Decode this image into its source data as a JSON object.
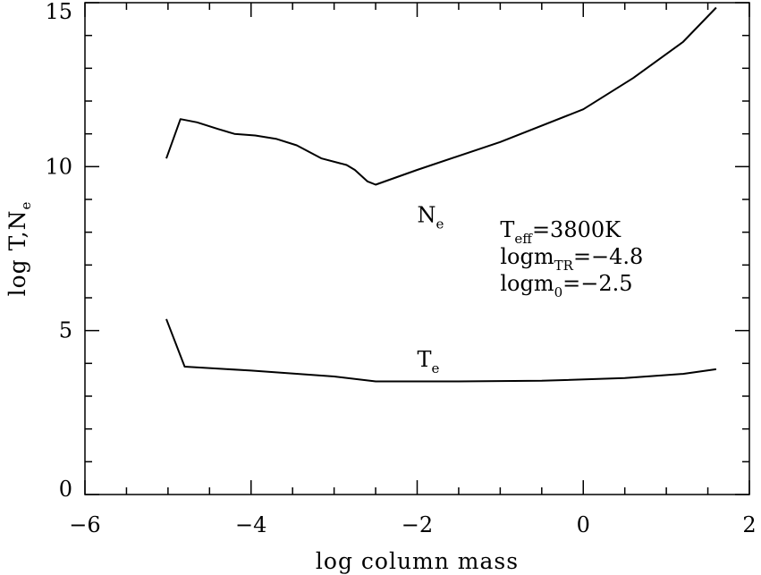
{
  "chart_data": {
    "type": "line",
    "xlabel": "log column mass",
    "ylabel": "log T,N",
    "ylabel_subscript": "e",
    "xlim": [
      -6,
      2
    ],
    "ylim": [
      0,
      15
    ],
    "x_ticks": [
      -6,
      -4,
      -2,
      0,
      2
    ],
    "y_ticks": [
      0,
      5,
      10,
      15
    ],
    "x_minor_step": 0.5,
    "y_minor_step": 1,
    "series": [
      {
        "label_main": "N",
        "label_sub": "e",
        "label_at": [
          -2.0,
          8.3
        ],
        "points": [
          [
            -5.02,
            10.25
          ],
          [
            -4.85,
            11.45
          ],
          [
            -4.65,
            11.35
          ],
          [
            -4.4,
            11.15
          ],
          [
            -4.2,
            11.0
          ],
          [
            -3.95,
            10.95
          ],
          [
            -3.7,
            10.85
          ],
          [
            -3.45,
            10.65
          ],
          [
            -3.15,
            10.25
          ],
          [
            -2.85,
            10.05
          ],
          [
            -2.75,
            9.9
          ],
          [
            -2.6,
            9.55
          ],
          [
            -2.5,
            9.45
          ],
          [
            -2.0,
            9.9
          ],
          [
            -1.0,
            10.75
          ],
          [
            0.0,
            11.75
          ],
          [
            0.6,
            12.7
          ],
          [
            1.2,
            13.8
          ],
          [
            1.6,
            14.85
          ]
        ]
      },
      {
        "label_main": "T",
        "label_sub": "e",
        "label_at": [
          -2.0,
          3.9
        ],
        "points": [
          [
            -5.02,
            5.35
          ],
          [
            -4.8,
            3.9
          ],
          [
            -4.0,
            3.78
          ],
          [
            -3.0,
            3.6
          ],
          [
            -2.5,
            3.45
          ],
          [
            -1.5,
            3.45
          ],
          [
            -0.5,
            3.47
          ],
          [
            0.5,
            3.55
          ],
          [
            1.2,
            3.68
          ],
          [
            1.6,
            3.82
          ]
        ]
      }
    ],
    "annotation": {
      "lines": [
        {
          "main": "T",
          "sub": "eff",
          "rest": "=3800K"
        },
        {
          "main": "logm",
          "sub": "TR",
          "rest": "=−4.8"
        },
        {
          "main": "logm",
          "sub": "0",
          "rest": "=−2.5"
        }
      ],
      "at": [
        -1.0,
        7.85
      ]
    }
  }
}
